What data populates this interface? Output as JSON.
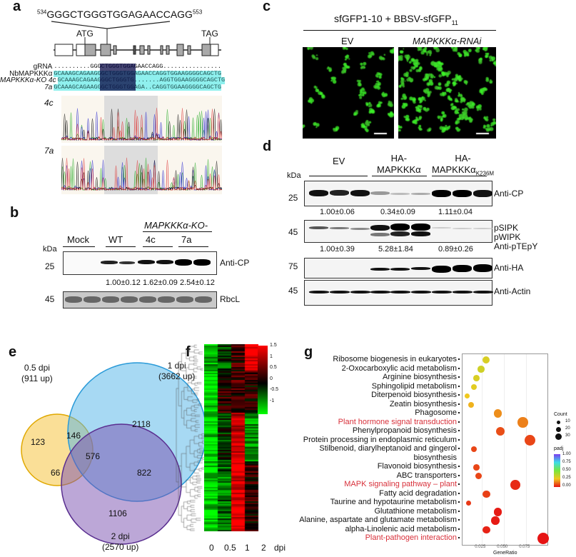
{
  "panel_a": {
    "label": "a",
    "seq_start": "534",
    "sequence": "GGGCTGGGTGGAGAACCAGG",
    "seq_end": "553",
    "start_codon": "ATG",
    "stop_codon": "TAG",
    "alignment": [
      {
        "name": "gRNA",
        "seq": "..........GGGCTGGGTGGAGAACCAGG................"
      },
      {
        "name": "NbMAPKKKα",
        "seq": "GCAAAGCAGAAGGGCTGGGTGGAGAACCAGGTGGAAGGGGCAGCTG"
      },
      {
        "name": "MAPKKKα-KO 4c",
        "seq": "GCAAAGCAGAAGGGCTGGGTG.......AGGTGGAAGGGGCAGCTG"
      },
      {
        "name": "7a",
        "seq": "GCAAAGCAGAAGGGCTGGGTGGAGA..CAGGTGGAAGGGGCAGCTG"
      }
    ],
    "trace_labels": [
      "4c",
      "7a"
    ]
  },
  "panel_b": {
    "label": "b",
    "group_header": "MAPKKKα-KO-",
    "lanes": [
      "Mock",
      "WT",
      "4c",
      "7a"
    ],
    "kda": "kDa",
    "markers": [
      "25",
      "45"
    ],
    "blots": [
      "Anti-CP",
      "RbcL"
    ],
    "quant": [
      "1.00±0.12",
      "1.62±0.09",
      "2.54±0.12"
    ]
  },
  "panel_c": {
    "label": "c",
    "title": "sfGFP1-10 + BBSV-sfGFP",
    "title_sub": "11",
    "columns": [
      "EV",
      "MAPKKKα-RNAi"
    ]
  },
  "panel_d": {
    "label": "d",
    "groups": [
      "EV",
      "HA-\nMAPKKKα",
      "HA-\nMAPKKKα"
    ],
    "group3_sub": "K236M",
    "kda": "kDa",
    "markers": [
      "25",
      "45",
      "75",
      "45"
    ],
    "blots": [
      "Anti-CP",
      "pSIPK\npWIPK\nAnti-pTEpY",
      "Anti-HA",
      "Anti-Actin"
    ],
    "quant_cp": [
      "1.00±0.06",
      "0.34±0.09",
      "1.11±0.04"
    ],
    "quant_ptepy": [
      "1.00±0.39",
      "5.28±1.84",
      "0.89±0.26"
    ]
  },
  "panel_e": {
    "label": "e",
    "sets": [
      {
        "name": "0.5 dpi",
        "count": "(911 up)",
        "color": "#f5c542"
      },
      {
        "name": "1 dpi",
        "count": "(3662 up)",
        "color": "#4fb3e8"
      },
      {
        "name": "2 dpi",
        "count": "(2570 up)",
        "color": "#7a4fb0"
      }
    ],
    "regions": {
      "only_05": "123",
      "only_1": "2118",
      "only_2": "1106",
      "r05_1": "146",
      "r05_2": "66",
      "r1_2": "822",
      "all": "576"
    }
  },
  "panel_f": {
    "label": "f",
    "x_labels": [
      "0",
      "0.5",
      "1",
      "2"
    ],
    "x_unit": "dpi",
    "scale": [
      "1.5",
      "1",
      "0.5",
      "0",
      "-0.5",
      "-1"
    ],
    "colors": {
      "high": "#ff0000",
      "mid": "#000000",
      "low": "#00ff00"
    }
  },
  "chart_data": {
    "type": "scatter",
    "label": "g",
    "xlabel": "GeneRatio",
    "xticks": [
      "0.025",
      "0.050",
      "0.075"
    ],
    "xlim": [
      0.003,
      0.099
    ],
    "categories": [
      "Ribosome biogenesis in eukaryotes",
      "2-Oxocarboxylic acid metabolism",
      "Arginine biosynthesis",
      "Sphingolipid metabolism",
      "Diterpenoid biosynthesis",
      "Zeatin biosynthesis",
      "Phagosome",
      "Plant hormone signal transduction",
      "Phenylpropanoid biosynthesis",
      "Protein processing in endoplasmic reticulum",
      "Stilbenoid, diarylheptanoid and gingerol biosynthesis",
      "Flavonoid biosynthesis",
      "ABC transporters",
      "MAPK signaling pathway – plant",
      "Fatty acid degradation",
      "Taurine and hypotaurine metabolism",
      "Glutathione metabolism",
      "Alanine, aspartate and glutamate metabolism",
      "alpha-Linolenic acid metabolism",
      "Plant-pathogen interaction"
    ],
    "highlighted": [
      "Plant hormone signal transduction",
      "MAPK signaling pathway – plant",
      "Plant-pathogen interaction"
    ],
    "gene_ratio": [
      0.03,
      0.024,
      0.019,
      0.016,
      0.008,
      0.013,
      0.043,
      0.071,
      0.046,
      0.079,
      0.016,
      0.019,
      0.021,
      0.063,
      0.03,
      0.01,
      0.043,
      0.04,
      0.03,
      0.094
    ],
    "count": [
      10,
      9,
      7,
      6,
      3,
      5,
      16,
      28,
      17,
      30,
      6,
      7,
      8,
      24,
      11,
      4,
      16,
      15,
      11,
      35
    ],
    "padj": [
      0.3,
      0.32,
      0.3,
      0.28,
      0.25,
      0.22,
      0.17,
      0.15,
      0.08,
      0.07,
      0.07,
      0.07,
      0.07,
      0.03,
      0.06,
      0.05,
      0.01,
      0.01,
      0.02,
      0.0
    ],
    "legend": {
      "size_title": "Count",
      "size_values": [
        "10",
        "20",
        "30"
      ],
      "color_title": "padj",
      "color_values": [
        "1.00",
        "0.75",
        "0.50",
        "0.25",
        "0.00"
      ]
    }
  }
}
